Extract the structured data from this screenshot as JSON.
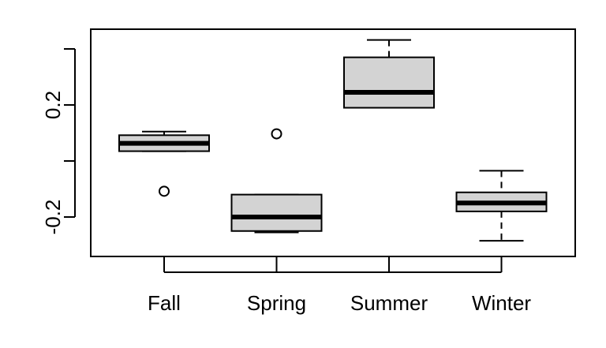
{
  "chart_data": {
    "type": "boxplot",
    "title": "",
    "xlabel": "",
    "ylabel": "",
    "ylim": [
      -0.3,
      0.42
    ],
    "yticks": [
      {
        "value": 0.4,
        "label": ""
      },
      {
        "value": 0.2,
        "label": "0.2"
      },
      {
        "value": 0.0,
        "label": ""
      },
      {
        "value": -0.2,
        "label": "-0.2"
      }
    ],
    "categories": [
      "Fall",
      "Spring",
      "Summer",
      "Winter"
    ],
    "boxes": [
      {
        "name": "Fall",
        "whisker_low": 0.035,
        "q1": 0.035,
        "median": 0.063,
        "q3": 0.092,
        "whisker_high": 0.105,
        "outliers": [
          -0.108
        ]
      },
      {
        "name": "Spring",
        "whisker_low": -0.255,
        "q1": -0.25,
        "median": -0.2,
        "q3": -0.12,
        "whisker_high": -0.12,
        "outliers": [
          0.097
        ]
      },
      {
        "name": "Summer",
        "whisker_low": 0.19,
        "q1": 0.19,
        "median": 0.245,
        "q3": 0.37,
        "whisker_high": 0.432,
        "outliers": []
      },
      {
        "name": "Winter",
        "whisker_low": -0.285,
        "q1": -0.18,
        "median": -0.15,
        "q3": -0.112,
        "whisker_high": -0.035,
        "outliers": []
      }
    ],
    "box_fill": "#d3d3d3"
  }
}
